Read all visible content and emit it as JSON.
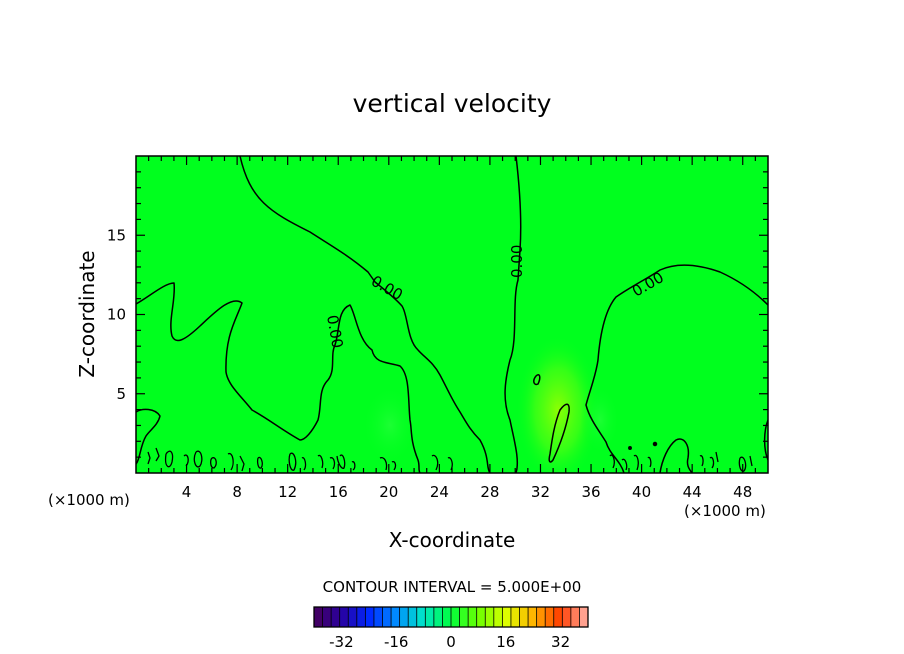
{
  "chart_data": {
    "type": "heatmap",
    "title": "vertical velocity",
    "xlabel": "X-coordinate",
    "ylabel": "Z-coordinate",
    "x_unit": "(×1000 m)",
    "x_unit_right": "(×1000 m)",
    "xlim": [
      0,
      50
    ],
    "ylim": [
      0,
      20
    ],
    "x_ticks": [
      "4",
      "8",
      "12",
      "16",
      "20",
      "24",
      "28",
      "32",
      "36",
      "40",
      "44",
      "48"
    ],
    "y_ticks": [
      "5",
      "10",
      "15"
    ],
    "background_value": 0,
    "contour_labels": [
      {
        "text": "0.00",
        "x": 19.5,
        "z": 11.3,
        "angle": 30
      },
      {
        "text": "0.00",
        "x": 15.2,
        "z": 8.4,
        "angle": 80
      },
      {
        "text": "0.00",
        "x": 30.0,
        "z": 13.8,
        "angle": -90
      },
      {
        "text": "0.00",
        "x": 40.5,
        "z": 12.3,
        "angle": -30
      }
    ],
    "updraft_max": {
      "x": 33.3,
      "z": 2.5,
      "value": 5
    },
    "contour_interval": "CONTOUR INTERVAL = 5.000E+00",
    "colorbar": {
      "min": -40,
      "max": 40,
      "step": 2.5,
      "tick_labels": [
        "-32",
        "-16",
        "0",
        "16",
        "32"
      ],
      "tick_values": [
        -32,
        -16,
        0,
        16,
        32
      ]
    }
  },
  "colors": {
    "field": "#00ff1e",
    "updraft": "#8cff00",
    "contour": "#000000"
  }
}
